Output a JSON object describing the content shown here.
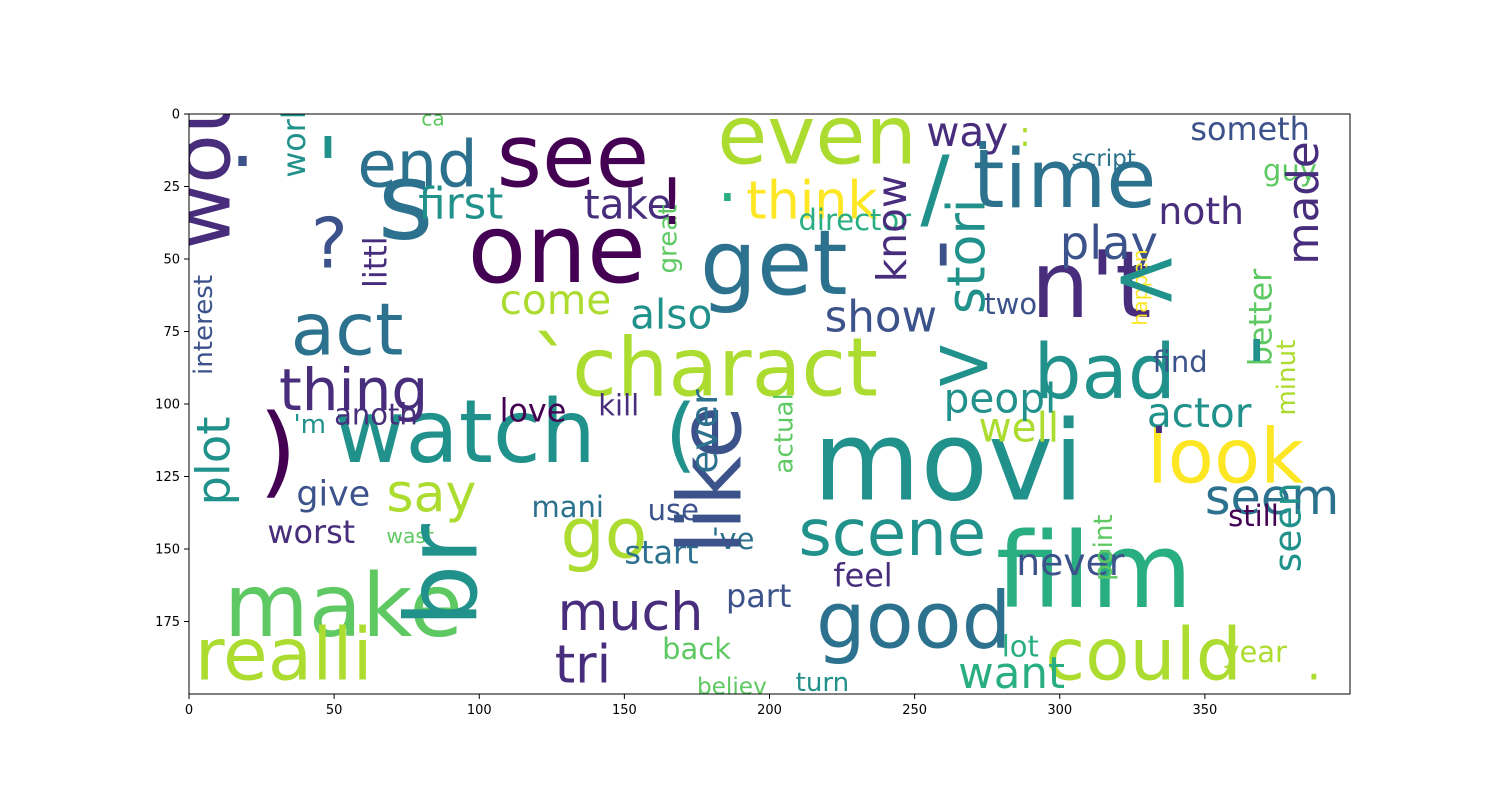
{
  "x_axis": {
    "ticks": [
      {
        "value": 0,
        "label": "0"
      },
      {
        "value": 50,
        "label": "50"
      },
      {
        "value": 100,
        "label": "100"
      },
      {
        "value": 150,
        "label": "150"
      },
      {
        "value": 200,
        "label": "200"
      },
      {
        "value": 250,
        "label": "250"
      },
      {
        "value": 300,
        "label": "300"
      },
      {
        "value": 350,
        "label": "350"
      }
    ],
    "range": [
      0,
      400
    ]
  },
  "y_axis": {
    "ticks": [
      {
        "value": 0,
        "label": "0"
      },
      {
        "value": 25,
        "label": "25"
      },
      {
        "value": 50,
        "label": "50"
      },
      {
        "value": 75,
        "label": "75"
      },
      {
        "value": 100,
        "label": "100"
      },
      {
        "value": 125,
        "label": "125"
      },
      {
        "value": 150,
        "label": "150"
      },
      {
        "value": 175,
        "label": "175"
      }
    ],
    "range": [
      0,
      200
    ],
    "inverted": true
  },
  "colors": {
    "dark_purple": "#440154",
    "purple": "#472d7b",
    "blue": "#3b528b",
    "teal_blue": "#2c728e",
    "teal": "#21918c",
    "green": "#28ae80",
    "light_green": "#5ec962",
    "lime": "#addc30",
    "yellow": "#fde725"
  },
  "words": [
    {
      "text": "movi",
      "x": 215,
      "y": 133,
      "size": 38,
      "color": "#21918c",
      "rotate": 0
    },
    {
      "text": "film",
      "x": 278,
      "y": 170,
      "size": 36,
      "color": "#28ae80",
      "rotate": 0
    },
    {
      "text": "n't",
      "x": 290,
      "y": 70,
      "size": 32,
      "color": "#472d7b",
      "rotate": 0
    },
    {
      "text": "one",
      "x": 96,
      "y": 58,
      "size": 33,
      "color": "#440154",
      "rotate": 0
    },
    {
      "text": "s",
      "x": 65,
      "y": 43,
      "size": 37,
      "color": "#2c728e",
      "rotate": 0
    },
    {
      "text": "see",
      "x": 106,
      "y": 25,
      "size": 30,
      "color": "#440154",
      "rotate": 0
    },
    {
      "text": "even",
      "x": 182,
      "y": 17,
      "size": 28,
      "color": "#addc30",
      "rotate": 0
    },
    {
      "text": "time",
      "x": 270,
      "y": 32,
      "size": 28,
      "color": "#2c728e",
      "rotate": 0
    },
    {
      "text": "get",
      "x": 176,
      "y": 62,
      "size": 31,
      "color": "#2c728e",
      "rotate": 0
    },
    {
      "text": "end",
      "x": 58,
      "y": 25,
      "size": 22,
      "color": "#2c728e",
      "rotate": 0
    },
    {
      "text": "think",
      "x": 192,
      "y": 36,
      "size": 18,
      "color": "#fde725",
      "rotate": 0
    },
    {
      "text": "charact",
      "x": 132,
      "y": 97,
      "size": 28,
      "color": "#addc30",
      "rotate": 0
    },
    {
      "text": "watch",
      "x": 50,
      "y": 120,
      "size": 30,
      "color": "#21918c",
      "rotate": 0
    },
    {
      "text": "make",
      "x": 12,
      "y": 180,
      "size": 30,
      "color": "#5ec962",
      "rotate": 0
    },
    {
      "text": "realli",
      "x": 2,
      "y": 195,
      "size": 25,
      "color": "#addc30",
      "rotate": 0
    },
    {
      "text": "good",
      "x": 216,
      "y": 184,
      "size": 27,
      "color": "#2c728e",
      "rotate": 0
    },
    {
      "text": "could",
      "x": 295,
      "y": 195,
      "size": 25,
      "color": "#addc30",
      "rotate": 0
    },
    {
      "text": "look",
      "x": 330,
      "y": 127,
      "size": 26,
      "color": "#fde725",
      "rotate": 0
    },
    {
      "text": "bad",
      "x": 291,
      "y": 98,
      "size": 26,
      "color": "#21918c",
      "rotate": 0
    },
    {
      "text": "act",
      "x": 35,
      "y": 83,
      "size": 25,
      "color": "#2c728e",
      "rotate": 0
    },
    {
      "text": "thing",
      "x": 31,
      "y": 102,
      "size": 20,
      "color": "#472d7b",
      "rotate": 0
    },
    {
      "text": "scene",
      "x": 210,
      "y": 152,
      "size": 22,
      "color": "#21918c",
      "rotate": 0
    },
    {
      "text": "go",
      "x": 128,
      "y": 153,
      "size": 24,
      "color": "#addc30",
      "rotate": 0
    },
    {
      "text": "much",
      "x": 127,
      "y": 178,
      "size": 18,
      "color": "#472d7b",
      "rotate": 0
    },
    {
      "text": "tri",
      "x": 126,
      "y": 196,
      "size": 18,
      "color": "#472d7b",
      "rotate": 0
    },
    {
      "text": "say",
      "x": 68,
      "y": 137,
      "size": 18,
      "color": "#addc30",
      "rotate": 0
    },
    {
      "text": "seem",
      "x": 350,
      "y": 138,
      "size": 17,
      "color": "#2c728e",
      "rotate": 0
    },
    {
      "text": "actor",
      "x": 330,
      "y": 108,
      "size": 14,
      "color": "#21918c",
      "rotate": 0
    },
    {
      "text": "well",
      "x": 272,
      "y": 113,
      "size": 14,
      "color": "#addc30",
      "rotate": 0
    },
    {
      "text": "peopl",
      "x": 260,
      "y": 103,
      "size": 14,
      "color": "#21918c",
      "rotate": 0
    },
    {
      "text": "play",
      "x": 300,
      "y": 50,
      "size": 16,
      "color": "#3b528b",
      "rotate": 0
    },
    {
      "text": "noth",
      "x": 334,
      "y": 38,
      "size": 13,
      "color": "#472d7b",
      "rotate": 0
    },
    {
      "text": "way",
      "x": 254,
      "y": 11,
      "size": 14,
      "color": "#472d7b",
      "rotate": 0
    },
    {
      "text": "someth",
      "x": 345,
      "y": 9,
      "size": 11,
      "color": "#3b528b",
      "rotate": 0
    },
    {
      "text": "guy",
      "x": 370,
      "y": 23,
      "size": 10,
      "color": "#5ec962",
      "rotate": 0
    },
    {
      "text": "first",
      "x": 79,
      "y": 36,
      "size": 15,
      "color": "#21918c",
      "rotate": 0
    },
    {
      "text": "take",
      "x": 136,
      "y": 36,
      "size": 14,
      "color": "#472d7b",
      "rotate": 0
    },
    {
      "text": "come",
      "x": 107,
      "y": 69,
      "size": 14,
      "color": "#addc30",
      "rotate": 0
    },
    {
      "text": "also",
      "x": 152,
      "y": 74,
      "size": 14,
      "color": "#21918c",
      "rotate": 0
    },
    {
      "text": "show",
      "x": 219,
      "y": 75,
      "size": 15,
      "color": "#3b528b",
      "rotate": 0
    },
    {
      "text": "director",
      "x": 210,
      "y": 40,
      "size": 10,
      "color": "#28ae80",
      "rotate": 0
    },
    {
      "text": "script",
      "x": 304,
      "y": 18,
      "size": 8,
      "color": "#2c728e",
      "rotate": 0
    },
    {
      "text": "two",
      "x": 274,
      "y": 69,
      "size": 10,
      "color": "#3b528b",
      "rotate": 0
    },
    {
      "text": "find",
      "x": 332,
      "y": 89,
      "size": 10,
      "color": "#3b528b",
      "rotate": 0
    },
    {
      "text": "want",
      "x": 265,
      "y": 198,
      "size": 15,
      "color": "#28ae80",
      "rotate": 0
    },
    {
      "text": "never",
      "x": 285,
      "y": 159,
      "size": 13,
      "color": "#3b528b",
      "rotate": 0
    },
    {
      "text": "feel",
      "x": 222,
      "y": 163,
      "size": 11,
      "color": "#472d7b",
      "rotate": 0
    },
    {
      "text": "start",
      "x": 150,
      "y": 155,
      "size": 11,
      "color": "#2c728e",
      "rotate": 0
    },
    {
      "text": "part",
      "x": 185,
      "y": 170,
      "size": 11,
      "color": "#3b528b",
      "rotate": 0
    },
    {
      "text": "lot",
      "x": 280,
      "y": 187,
      "size": 10,
      "color": "#28ae80",
      "rotate": 0
    },
    {
      "text": "year",
      "x": 356,
      "y": 189,
      "size": 10,
      "color": "#addc30",
      "rotate": 0
    },
    {
      "text": "still",
      "x": 358,
      "y": 142,
      "size": 10,
      "color": "#440154",
      "rotate": 0
    },
    {
      "text": "mani",
      "x": 118,
      "y": 139,
      "size": 10,
      "color": "#2c728e",
      "rotate": 0
    },
    {
      "text": "use",
      "x": 158,
      "y": 140,
      "size": 10,
      "color": "#3b528b",
      "rotate": 0
    },
    {
      "text": "'ve",
      "x": 180,
      "y": 150,
      "size": 10,
      "color": "#2c728e",
      "rotate": 0
    },
    {
      "text": "give",
      "x": 37,
      "y": 135,
      "size": 12,
      "color": "#3b528b",
      "rotate": 0
    },
    {
      "text": "worst",
      "x": 27,
      "y": 148,
      "size": 11,
      "color": "#472d7b",
      "rotate": 0
    },
    {
      "text": "love",
      "x": 107,
      "y": 106,
      "size": 11,
      "color": "#440154",
      "rotate": 0
    },
    {
      "text": "kill",
      "x": 141,
      "y": 104,
      "size": 10,
      "color": "#472d7b",
      "rotate": 0
    },
    {
      "text": "anoth",
      "x": 50,
      "y": 107,
      "size": 10,
      "color": "#472d7b",
      "rotate": 0
    },
    {
      "text": "'m",
      "x": 36,
      "y": 110,
      "size": 9,
      "color": "#21918c",
      "rotate": 0
    },
    {
      "text": "back",
      "x": 163,
      "y": 188,
      "size": 10,
      "color": "#5ec962",
      "rotate": 0
    },
    {
      "text": "believ",
      "x": 175,
      "y": 200,
      "size": 8,
      "color": "#5ec962",
      "rotate": 0
    },
    {
      "text": "turn",
      "x": 209,
      "y": 199,
      "size": 9,
      "color": "#21918c",
      "rotate": 0
    },
    {
      "text": "wast",
      "x": 68,
      "y": 148,
      "size": 7,
      "color": "#5ec962",
      "rotate": 0
    },
    {
      "text": "ca",
      "x": 80,
      "y": 4,
      "size": 7,
      "color": "#5ec962",
      "rotate": 0
    },
    {
      "text": "would",
      "x": 14,
      "y": 47,
      "size": 28,
      "color": "#472d7b",
      "rotate": -90
    },
    {
      "text": "br",
      "x": 99,
      "y": 177,
      "size": 34,
      "color": "#21918c",
      "rotate": -90
    },
    {
      "text": "like",
      "x": 190,
      "y": 152,
      "size": 30,
      "color": "#3b528b",
      "rotate": -90
    },
    {
      "text": "stori",
      "x": 274,
      "y": 69,
      "size": 18,
      "color": "#21918c",
      "rotate": -90
    },
    {
      "text": "made",
      "x": 389,
      "y": 52,
      "size": 15,
      "color": "#472d7b",
      "rotate": -90
    },
    {
      "text": "know",
      "x": 247,
      "y": 58,
      "size": 14,
      "color": "#472d7b",
      "rotate": -90
    },
    {
      "text": "better",
      "x": 373,
      "y": 87,
      "size": 11,
      "color": "#5ec962",
      "rotate": -90
    },
    {
      "text": "seen",
      "x": 383,
      "y": 158,
      "size": 13,
      "color": "#21918c",
      "rotate": -90
    },
    {
      "text": "minut",
      "x": 381,
      "y": 104,
      "size": 9,
      "color": "#addc30",
      "rotate": -90
    },
    {
      "text": "point",
      "x": 318,
      "y": 161,
      "size": 9,
      "color": "#5ec962",
      "rotate": -90
    },
    {
      "text": "ever",
      "x": 182,
      "y": 124,
      "size": 13,
      "color": "#2c728e",
      "rotate": -90
    },
    {
      "text": "actual",
      "x": 208,
      "y": 124,
      "size": 9,
      "color": "#5ec962",
      "rotate": -90
    },
    {
      "text": "happen",
      "x": 330,
      "y": 73,
      "size": 7,
      "color": "#fde725",
      "rotate": -90
    },
    {
      "text": "great",
      "x": 168,
      "y": 55,
      "size": 9,
      "color": "#5ec962",
      "rotate": -90
    },
    {
      "text": "work",
      "x": 40,
      "y": 22,
      "size": 11,
      "color": "#21918c",
      "rotate": -90
    },
    {
      "text": "littl",
      "x": 68,
      "y": 60,
      "size": 11,
      "color": "#472d7b",
      "rotate": -90
    },
    {
      "text": "interest",
      "x": 8,
      "y": 90,
      "size": 9,
      "color": "#3b528b",
      "rotate": -90
    },
    {
      "text": "plot",
      "x": 14,
      "y": 135,
      "size": 16,
      "color": "#21918c",
      "rotate": -90
    },
    {
      "text": "'",
      "x": 44,
      "y": 28,
      "size": 28,
      "color": "#21918c",
      "rotate": 0
    },
    {
      "text": "?",
      "x": 42,
      "y": 53,
      "size": 24,
      "color": "#3b528b",
      "rotate": 0
    },
    {
      "text": ".",
      "x": 14,
      "y": 18,
      "size": 28,
      "color": "#3b528b",
      "rotate": 0
    },
    {
      "text": "!",
      "x": 162,
      "y": 38,
      "size": 22,
      "color": "#440154",
      "rotate": 0
    },
    {
      "text": ".",
      "x": 182,
      "y": 30,
      "size": 22,
      "color": "#28ae80",
      "rotate": 0
    },
    {
      "text": "/",
      "x": 252,
      "y": 36,
      "size": 30,
      "color": "#21918c",
      "rotate": 0
    },
    {
      "text": "'",
      "x": 256,
      "y": 65,
      "size": 28,
      "color": "#3b528b",
      "rotate": 0
    },
    {
      "text": ".",
      "x": 270,
      "y": 12,
      "size": 22,
      "color": "#2c728e",
      "rotate": 0
    },
    {
      "text": "<",
      "x": 318,
      "y": 66,
      "size": 28,
      "color": "#21918c",
      "rotate": 0
    },
    {
      "text": ">",
      "x": 256,
      "y": 95,
      "size": 26,
      "color": "#21918c",
      "rotate": 0
    },
    {
      "text": "`",
      "x": 118,
      "y": 97,
      "size": 28,
      "color": "#addc30",
      "rotate": 0
    },
    {
      "text": ")",
      "x": 24,
      "y": 128,
      "size": 34,
      "color": "#440154",
      "rotate": 0
    },
    {
      "text": "(",
      "x": 164,
      "y": 120,
      "size": 28,
      "color": "#21918c",
      "rotate": 0
    },
    {
      "text": "'",
      "x": 364,
      "y": 98,
      "size": 28,
      "color": "#21918c",
      "rotate": 0
    },
    {
      "text": ".",
      "x": 331,
      "y": 110,
      "size": 20,
      "color": "#472d7b",
      "rotate": 0
    },
    {
      "text": ":",
      "x": 286,
      "y": 11,
      "size": 12,
      "color": "#addc30",
      "rotate": 0
    },
    {
      "text": ".",
      "x": 333,
      "y": 203,
      "size": 16,
      "color": "#addc30",
      "rotate": 0
    },
    {
      "text": ".",
      "x": 385,
      "y": 195,
      "size": 16,
      "color": "#addc30",
      "rotate": 0
    }
  ]
}
